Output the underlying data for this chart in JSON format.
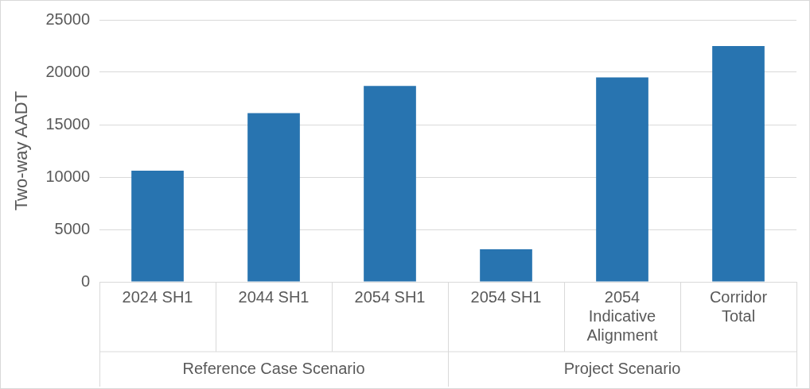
{
  "chart_data": {
    "type": "bar",
    "ylabel": "Two-way AADT",
    "categories": [
      "2024 SH1",
      "2044 SH1",
      "2054 SH1",
      "2054 SH1",
      "2054 Indicative Alignment",
      "Corridor Total"
    ],
    "values": [
      10600,
      16100,
      18700,
      3100,
      19500,
      22500
    ],
    "color": "#2874b0",
    "ylim": [
      0,
      25000
    ],
    "yticks": [
      0,
      5000,
      10000,
      15000,
      20000,
      25000
    ],
    "grid": "y",
    "legend": false,
    "annotations": [
      "Reference Case Scenario",
      "Project Scenario"
    ]
  }
}
